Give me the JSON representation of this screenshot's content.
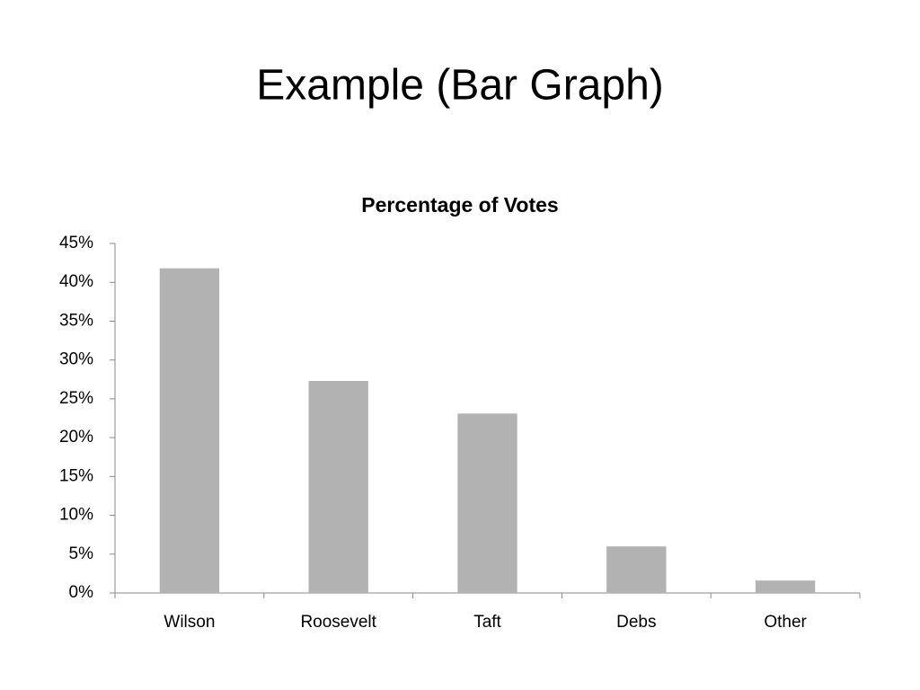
{
  "title": "Example (Bar Graph)",
  "chart_data": {
    "type": "bar",
    "title": "Percentage of Votes",
    "categories": [
      "Wilson",
      "Roosevelt",
      "Taft",
      "Debs",
      "Other"
    ],
    "values": [
      41.8,
      27.3,
      23.1,
      6.0,
      1.6
    ],
    "color": "#b2b2b2",
    "ylim": [
      0,
      45
    ],
    "yticks": [
      {
        "value": 0,
        "label": "0%"
      },
      {
        "value": 5,
        "label": "5%"
      },
      {
        "value": 10,
        "label": "10%"
      },
      {
        "value": 15,
        "label": "15%"
      },
      {
        "value": 20,
        "label": "20%"
      },
      {
        "value": 25,
        "label": "25%"
      },
      {
        "value": 30,
        "label": "30%"
      },
      {
        "value": 35,
        "label": "35%"
      },
      {
        "value": 40,
        "label": "40%"
      },
      {
        "value": 45,
        "label": "45%"
      }
    ],
    "grid": false
  }
}
